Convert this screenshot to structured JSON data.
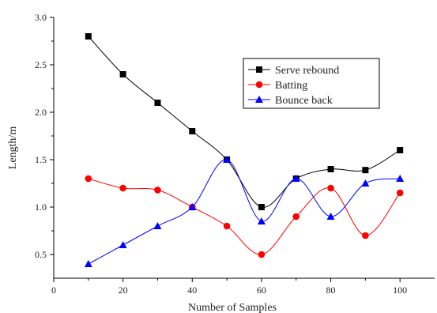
{
  "chart_data": {
    "type": "line",
    "xlabel": "Number of Samples",
    "ylabel": "Length/m",
    "xlim": [
      0,
      110
    ],
    "ylim": [
      0.25,
      3.0
    ],
    "xticks": [
      "0",
      "20",
      "40",
      "60",
      "80",
      "100"
    ],
    "yticks": [
      "0.5",
      "1.0",
      "1.5",
      "2.0",
      "2.5",
      "3.0"
    ],
    "legend_position": "top-right",
    "x": [
      10,
      20,
      30,
      40,
      50,
      60,
      70,
      80,
      90,
      100
    ],
    "series": [
      {
        "name": "Serve rebound",
        "color": "#000000",
        "marker": "square",
        "values": [
          2.8,
          2.4,
          2.1,
          1.8,
          1.5,
          1.0,
          1.3,
          1.4,
          1.39,
          1.6
        ]
      },
      {
        "name": "Batting",
        "color": "#ff0000",
        "marker": "circle",
        "values": [
          1.3,
          1.2,
          1.18,
          1.0,
          0.8,
          0.5,
          0.9,
          1.2,
          0.7,
          1.15
        ]
      },
      {
        "name": "Bounce back",
        "color": "#0000ff",
        "marker": "triangle",
        "values": [
          0.4,
          0.6,
          0.8,
          1.0,
          1.5,
          0.85,
          1.3,
          0.9,
          1.25,
          1.3
        ]
      }
    ]
  }
}
